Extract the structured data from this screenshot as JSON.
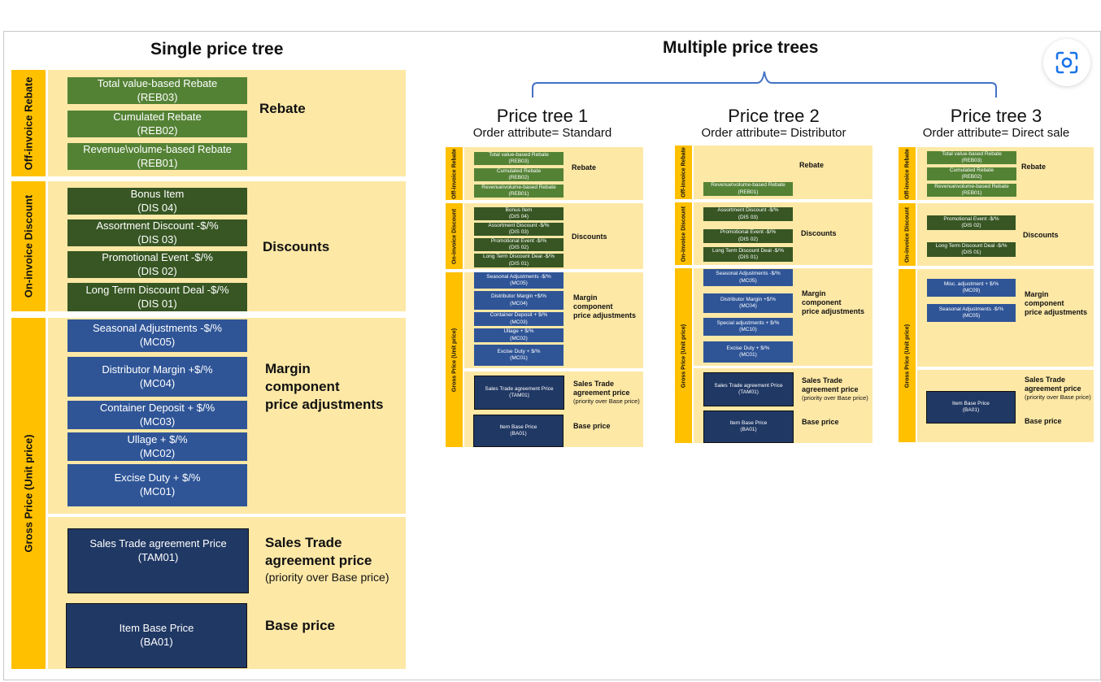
{
  "single": {
    "title": "Single price tree",
    "bars": [
      "Off-invoice Rebate",
      "On-invoice Discount",
      "Gross Price (Unit price)"
    ],
    "rebate": {
      "label": "Rebate",
      "items": [
        {
          "name": "Total value-based Rebate",
          "code": "(REB03)"
        },
        {
          "name": "Cumulated Rebate",
          "code": "(REB02)"
        },
        {
          "name": "Revenue\\volume-based Rebate",
          "code": "(REB01)"
        }
      ]
    },
    "discounts": {
      "label": "Discounts",
      "items": [
        {
          "name": "Bonus Item",
          "code": "(DIS 04)"
        },
        {
          "name": "Assortment Discount -$/%",
          "code": "(DIS 03)"
        },
        {
          "name": "Promotional Event -$/%",
          "code": "(DIS 02)"
        },
        {
          "name": "Long Term Discount Deal -$/%",
          "code": "(DIS 01)"
        }
      ]
    },
    "margin": {
      "label_l1": "Margin",
      "label_l2": "component",
      "label_l3": "price adjustments",
      "items": [
        {
          "name": "Seasonal Adjustments -$/%",
          "code": "(MC05)"
        },
        {
          "name": "Distributor Margin +$/%",
          "code": "(MC04)"
        },
        {
          "name": "Container Deposit + $/%",
          "code": "(MC03)"
        },
        {
          "name": "Ullage + $/%",
          "code": "(MC02)"
        },
        {
          "name": "Excise Duty + $/%",
          "code": "(MC01)"
        }
      ]
    },
    "trade": {
      "label_l1": "Sales Trade",
      "label_l2": "agreement price",
      "label_sub": "(priority over Base price)",
      "name": "Sales Trade agreement Price",
      "code": "(TAM01)"
    },
    "base": {
      "label": "Base price",
      "name": "Item Base Price",
      "code": "(BA01)"
    }
  },
  "multi": {
    "title": "Multiple price trees",
    "trees": [
      {
        "title": "Price tree 1",
        "attribute": "Order attribute= Standard",
        "rebate_items": [
          {
            "name": "Total value-based Rebate",
            "code": "(REB03)"
          },
          {
            "name": "Cumulated Rebate",
            "code": "(REB02)"
          },
          {
            "name": "Revenue\\volume-based Rebate",
            "code": "(REB01)"
          }
        ],
        "discount_items": [
          {
            "name": "Bonus Item",
            "code": "(DIS 04)"
          },
          {
            "name": "Assortment Discount -$/%",
            "code": "(DIS 03)"
          },
          {
            "name": "Promotional Event -$/%",
            "code": "(DIS 02)"
          },
          {
            "name": "Long Term Discount Deal -$/%",
            "code": "(DIS 01)"
          }
        ],
        "margin_items": [
          {
            "name": "Seasonal Adjustments -$/%",
            "code": "(MC05)"
          },
          {
            "name": "Distributor Margin +$/%",
            "code": "(MC04)"
          },
          {
            "name": "Container Deposit + $/%",
            "code": "(MC03)"
          },
          {
            "name": "Ullage + $/%",
            "code": "(MC02)"
          },
          {
            "name": "Excise Duty + $/%",
            "code": "(MC01)"
          }
        ],
        "trade": {
          "name": "Sales Trade agreement Price",
          "code": "(TAM01)"
        },
        "base": {
          "name": "Item Base Price",
          "code": "(BA01)"
        }
      },
      {
        "title": "Price tree 2",
        "attribute": "Order attribute= Distributor",
        "rebate_items": [
          {
            "name": "Revenue\\volume-based Rebate",
            "code": "(REB01)"
          }
        ],
        "discount_items": [
          {
            "name": "Assortment Discount -$/%",
            "code": "(DIS 03)"
          },
          {
            "name": "Promotional Event -$/%",
            "code": "(DIS 02)"
          },
          {
            "name": "Long Term Discount Deal -$/%",
            "code": "(DIS 01)"
          }
        ],
        "margin_items": [
          {
            "name": "Seasonal Adjustments -$/%",
            "code": "(MC05)"
          },
          {
            "name": "Distributor Margin +$/%",
            "code": "(MC04)"
          },
          {
            "name": "Special adjustments + $/%",
            "code": "(MC10)"
          },
          {
            "name": "Excise Duty + $/%",
            "code": "(MC01)"
          }
        ],
        "trade": {
          "name": "Sales Trade agreement Price",
          "code": "(TAM01)"
        },
        "base": {
          "name": "Item Base Price",
          "code": "(BA01)"
        }
      },
      {
        "title": "Price tree 3",
        "attribute": "Order attribute= Direct sale",
        "rebate_items": [
          {
            "name": "Total value-based Rebate",
            "code": "(REB03)"
          },
          {
            "name": "Cumulated Rebate",
            "code": "(REB02)"
          },
          {
            "name": "Revenue\\volume-based Rebate",
            "code": "(REB01)"
          }
        ],
        "discount_items": [
          {
            "name": "Promotional Event -$/%",
            "code": "(DIS 02)"
          },
          {
            "name": "Long Term Discount Deal -$/%",
            "code": "(DIS 01)"
          }
        ],
        "margin_items": [
          {
            "name": "Misc. adjustment + $/%",
            "code": "(MC09)"
          },
          {
            "name": "Seasonal Adjustments -$/%",
            "code": "(MC05)"
          }
        ],
        "base": {
          "name": "Item Base Price",
          "code": "(BA01)"
        }
      }
    ]
  },
  "icons": {
    "visual_search": "camera-scan-icon"
  }
}
